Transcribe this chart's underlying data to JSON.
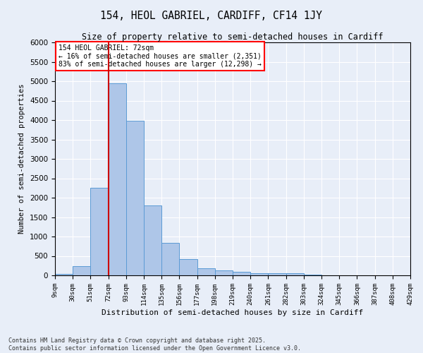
{
  "title": "154, HEOL GABRIEL, CARDIFF, CF14 1JY",
  "subtitle": "Size of property relative to semi-detached houses in Cardiff",
  "xlabel": "Distribution of semi-detached houses by size in Cardiff",
  "ylabel": "Number of semi-detached properties",
  "footer_line1": "Contains HM Land Registry data © Crown copyright and database right 2025.",
  "footer_line2": "Contains public sector information licensed under the Open Government Licence v3.0.",
  "annotation_line1": "154 HEOL GABRIEL: 72sqm",
  "annotation_line2": "← 16% of semi-detached houses are smaller (2,351)",
  "annotation_line3": "83% of semi-detached houses are larger (12,298) →",
  "property_size": 72,
  "bin_edges": [
    9,
    30,
    51,
    72,
    93,
    114,
    135,
    156,
    177,
    198,
    219,
    240,
    261,
    282,
    303,
    324,
    345,
    366,
    387,
    408,
    429
  ],
  "bin_values": [
    40,
    240,
    2250,
    4950,
    3980,
    1800,
    840,
    420,
    190,
    130,
    90,
    60,
    50,
    50,
    10,
    5,
    5,
    5,
    5,
    5
  ],
  "bar_color": "#aec6e8",
  "bar_edge_color": "#5b9bd5",
  "vline_color": "#cc0000",
  "background_color": "#e8eef8",
  "grid_color": "#ffffff",
  "ylim": [
    0,
    6000
  ],
  "yticks": [
    0,
    500,
    1000,
    1500,
    2000,
    2500,
    3000,
    3500,
    4000,
    4500,
    5000,
    5500,
    6000
  ]
}
